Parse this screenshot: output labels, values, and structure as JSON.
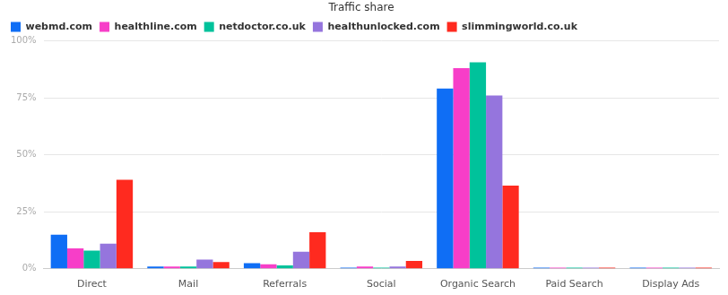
{
  "chart_data": {
    "type": "bar",
    "title": "Traffic share",
    "categories": [
      "Direct",
      "Mail",
      "Referrals",
      "Social",
      "Organic Search",
      "Paid Search",
      "Display Ads"
    ],
    "series": [
      {
        "name": "webmd.com",
        "color": "#0f6ef5",
        "values": [
          15,
          1,
          2.5,
          0.5,
          79,
          0.5,
          0.5
        ]
      },
      {
        "name": "healthline.com",
        "color": "#f73ec8",
        "values": [
          9,
          1,
          2,
          1,
          88,
          0.5,
          0.5
        ]
      },
      {
        "name": "netdoctor.co.uk",
        "color": "#00c29b",
        "values": [
          8,
          1,
          1.5,
          0.5,
          90.5,
          0.5,
          0.5
        ]
      },
      {
        "name": "healthunlocked.com",
        "color": "#9575dd",
        "values": [
          11,
          4,
          7.5,
          1,
          76,
          0.5,
          0.5
        ]
      },
      {
        "name": "slimmingworld.co.uk",
        "color": "#ff2a1f",
        "values": [
          39,
          3,
          16,
          3.5,
          36.5,
          0.5,
          0.5
        ]
      }
    ],
    "ylim": [
      0,
      100
    ],
    "yticks": [
      {
        "value": 0,
        "label": "0%"
      },
      {
        "value": 25,
        "label": "25%"
      },
      {
        "value": 50,
        "label": "50%"
      },
      {
        "value": 75,
        "label": "75%"
      },
      {
        "value": 100,
        "label": "100%"
      }
    ],
    "grid": true,
    "legend": "top-left"
  }
}
